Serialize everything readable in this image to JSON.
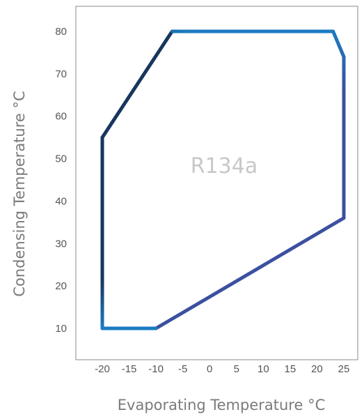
{
  "chart_data": {
    "type": "line",
    "title": "",
    "xlabel": "Evaporating Temperature °C",
    "ylabel": "Condensing Temperature °C",
    "xlim": [
      -25,
      27.5
    ],
    "ylim": [
      2,
      86
    ],
    "x_ticks": [
      -20,
      -15,
      -10,
      -5,
      0,
      5,
      10,
      15,
      20,
      25
    ],
    "y_ticks": [
      10,
      20,
      30,
      40,
      50,
      60,
      70,
      80
    ],
    "grid": false,
    "annotation": "R134a",
    "colors": {
      "dark": "#17365d",
      "light": "#1b7bc1",
      "mid": "#3c50a0",
      "frame": "#888888"
    },
    "series": [
      {
        "closed": true,
        "points": [
          {
            "x": -20,
            "y": 10
          },
          {
            "x": -20,
            "y": 55
          },
          {
            "x": -7,
            "y": 80
          },
          {
            "x": 23,
            "y": 80
          },
          {
            "x": 25,
            "y": 74
          },
          {
            "x": 25,
            "y": 36
          },
          {
            "x": -10,
            "y": 10
          }
        ]
      }
    ]
  }
}
